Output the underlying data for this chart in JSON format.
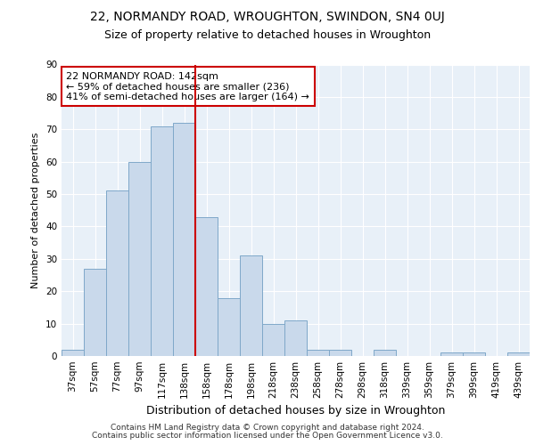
{
  "title1": "22, NORMANDY ROAD, WROUGHTON, SWINDON, SN4 0UJ",
  "title2": "Size of property relative to detached houses in Wroughton",
  "xlabel": "Distribution of detached houses by size in Wroughton",
  "ylabel": "Number of detached properties",
  "bar_labels": [
    "37sqm",
    "57sqm",
    "77sqm",
    "97sqm",
    "117sqm",
    "138sqm",
    "158sqm",
    "178sqm",
    "198sqm",
    "218sqm",
    "238sqm",
    "258sqm",
    "278sqm",
    "298sqm",
    "318sqm",
    "339sqm",
    "359sqm",
    "379sqm",
    "399sqm",
    "419sqm",
    "439sqm"
  ],
  "bar_values": [
    2,
    27,
    51,
    60,
    71,
    72,
    43,
    18,
    31,
    10,
    11,
    2,
    2,
    0,
    2,
    0,
    0,
    1,
    1,
    0,
    1
  ],
  "bar_color": "#c9d9eb",
  "bar_edge_color": "#7fa8c9",
  "vline_color": "#cc0000",
  "vline_index": 5,
  "annotation_text": "22 NORMANDY ROAD: 142sqm\n← 59% of detached houses are smaller (236)\n41% of semi-detached houses are larger (164) →",
  "annotation_box_color": "#ffffff",
  "annotation_box_edge_color": "#cc0000",
  "ylim": [
    0,
    90
  ],
  "yticks": [
    0,
    10,
    20,
    30,
    40,
    50,
    60,
    70,
    80,
    90
  ],
  "background_color": "#e8f0f8",
  "grid_color": "#ffffff",
  "footer1": "Contains HM Land Registry data © Crown copyright and database right 2024.",
  "footer2": "Contains public sector information licensed under the Open Government Licence v3.0.",
  "title1_fontsize": 10,
  "title2_fontsize": 9,
  "axis_fontsize": 7.5,
  "annotation_fontsize": 8,
  "xlabel_fontsize": 9,
  "ylabel_fontsize": 8,
  "footer_fontsize": 6.5
}
